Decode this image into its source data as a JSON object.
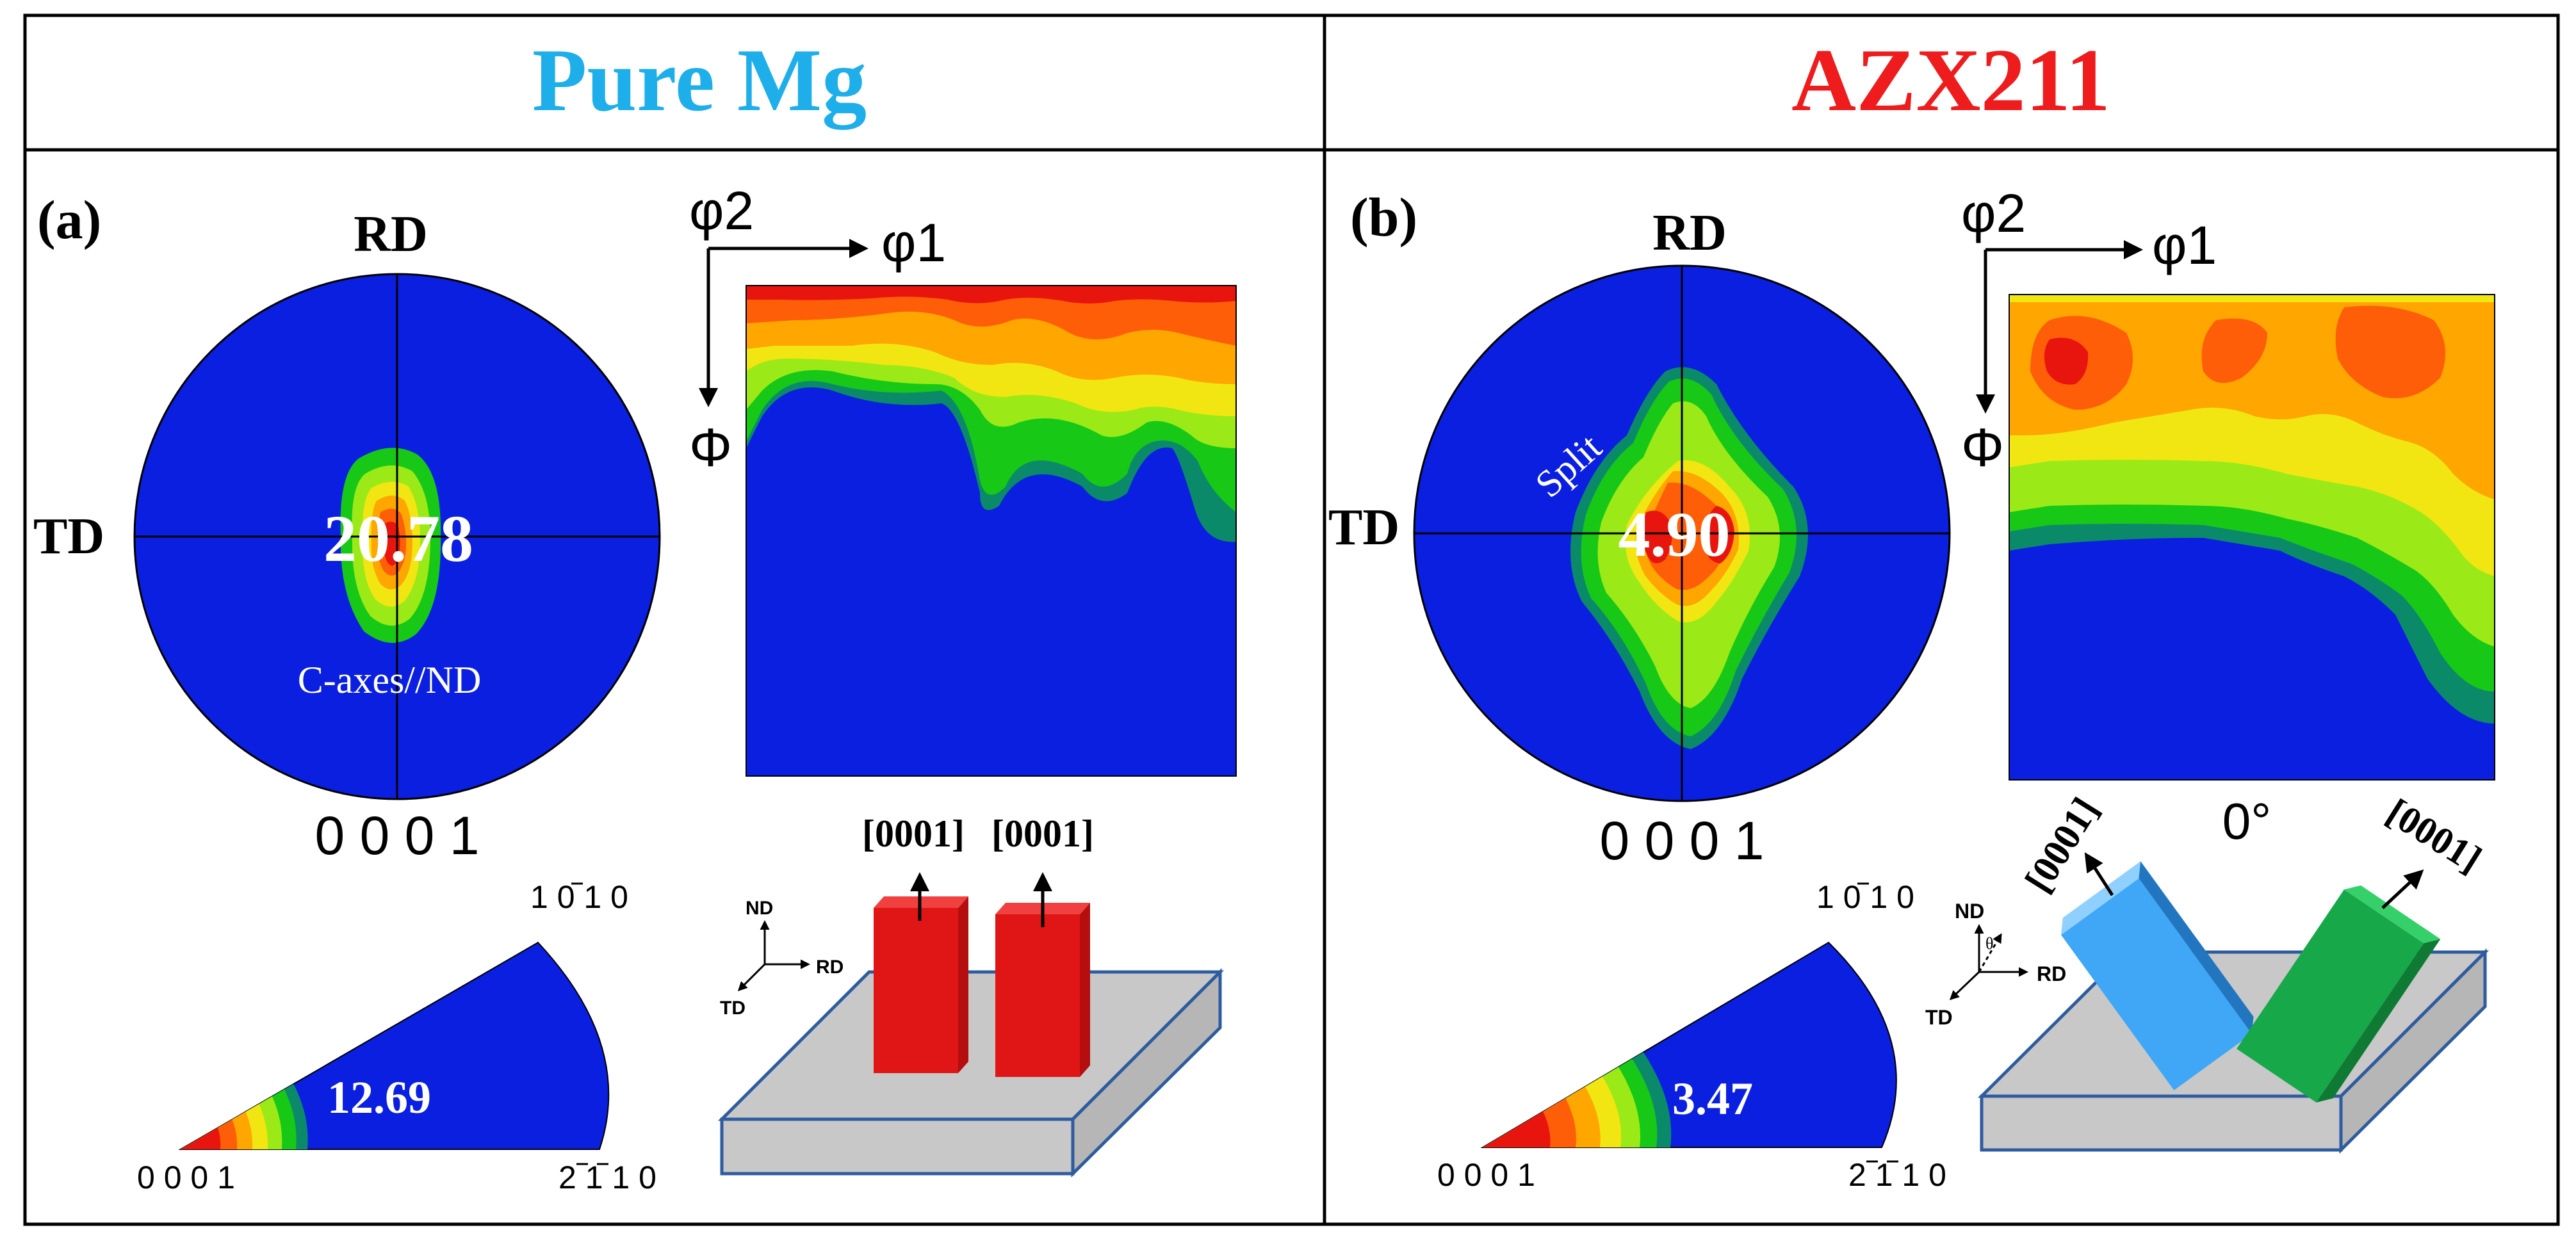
{
  "colors": {
    "accent_left": "#1EAEEA",
    "accent_right": "#EE1C1C",
    "contour_blue": "#0A1FE0",
    "contour_red": "#E8150E",
    "crystal_red": "#E01515",
    "crystal_blue": "#3FA7F5",
    "crystal_green": "#17A84A",
    "plate_gray": "#C8C8C8",
    "plate_edge": "#2E5C9E"
  },
  "panels": [
    {
      "title": "Pure Mg",
      "label": "(a)",
      "pole_figure": {
        "top_label": "RD",
        "left_label": "TD",
        "max_intensity": "20.78",
        "annotation": "C-axes//ND",
        "plane": "0 0 0 1"
      },
      "odf": {
        "axis_h": "φ1",
        "axis_v": "Φ",
        "axis_origin": "φ2"
      },
      "inverse_pole_figure": {
        "max_intensity": "12.69",
        "corner_origin": "0 0 0 1",
        "corner_top": "1 0 1 0",
        "corner_right": "2 1 1 0"
      },
      "schematic": {
        "frame": {
          "nd": "ND",
          "rd": "RD",
          "td": "TD"
        },
        "direction_left": "[0001]",
        "direction_right": "[0001]"
      }
    },
    {
      "title": "AZX211",
      "label": "(b)",
      "pole_figure": {
        "top_label": "RD",
        "left_label": "TD",
        "max_intensity": "4.90",
        "annotation": "Split",
        "plane": "0 0 0 1"
      },
      "odf": {
        "axis_h": "φ1",
        "axis_v": "Φ",
        "axis_origin": "φ2",
        "section": "0°"
      },
      "inverse_pole_figure": {
        "max_intensity": "3.47",
        "corner_origin": "0 0 0 1",
        "corner_top": "1 0 1 0",
        "corner_right": "2 1 1 0"
      },
      "schematic": {
        "frame": {
          "nd": "ND",
          "rd": "RD",
          "td": "TD",
          "angle": "θ"
        },
        "direction_left": "[0001]",
        "direction_right": "[0001]"
      }
    }
  ]
}
